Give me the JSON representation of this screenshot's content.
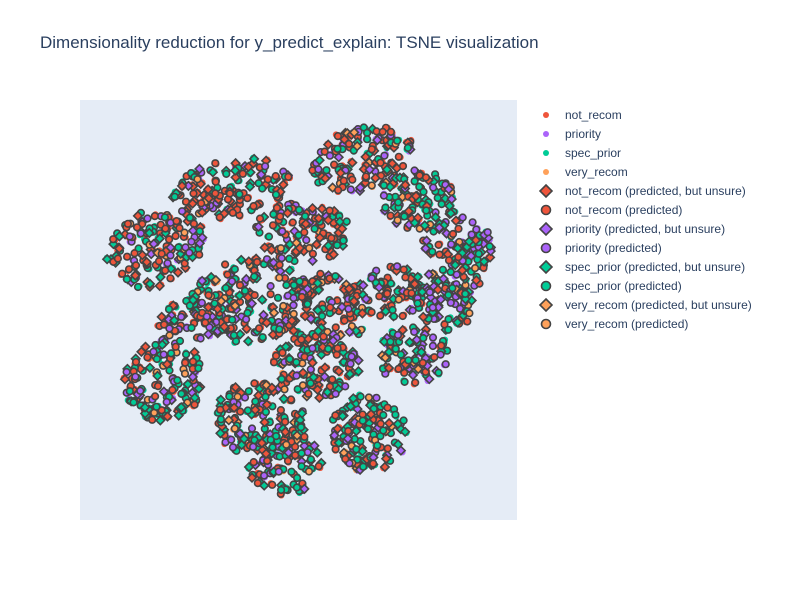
{
  "chart_data": {
    "type": "scatter",
    "title": "Dimensionality reduction for y_predict_explain: TSNE visualization",
    "xlabel": "",
    "ylabel": "",
    "grid": false,
    "axes_ticks_visible": false,
    "legend_position": "right",
    "plot_background": "#e5ecf6",
    "series": [
      {
        "name": "not_recom",
        "symbol": "circle",
        "color": "#EF553B",
        "outlined": false
      },
      {
        "name": "priority",
        "symbol": "circle",
        "color": "#AB63FA",
        "outlined": false
      },
      {
        "name": "spec_prior",
        "symbol": "circle",
        "color": "#00CC96",
        "outlined": false
      },
      {
        "name": "very_recom",
        "symbol": "circle",
        "color": "#FFA15A",
        "outlined": false
      },
      {
        "name": "not_recom (predicted, but unsure)",
        "symbol": "diamond",
        "color": "#EF553B",
        "outlined": true
      },
      {
        "name": "not_recom (predicted)",
        "symbol": "circle",
        "color": "#EF553B",
        "outlined": true
      },
      {
        "name": "priority (predicted, but unsure)",
        "symbol": "diamond",
        "color": "#AB63FA",
        "outlined": true
      },
      {
        "name": "priority (predicted)",
        "symbol": "circle",
        "color": "#AB63FA",
        "outlined": true
      },
      {
        "name": "spec_prior (predicted, but unsure)",
        "symbol": "diamond",
        "color": "#00CC96",
        "outlined": true
      },
      {
        "name": "spec_prior (predicted)",
        "symbol": "circle",
        "color": "#00CC96",
        "outlined": true
      },
      {
        "name": "very_recom (predicted, but unsure)",
        "symbol": "diamond",
        "color": "#FFA15A",
        "outlined": true
      },
      {
        "name": "very_recom (predicted)",
        "symbol": "circle",
        "color": "#FFA15A",
        "outlined": true
      }
    ],
    "outline_color": "#444444"
  }
}
